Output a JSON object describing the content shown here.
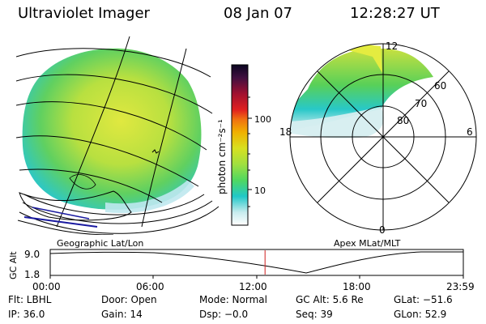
{
  "header": {
    "title": "Ultraviolet Imager",
    "date": "08 Jan 07",
    "time": "12:28:27 UT"
  },
  "left_panel": {
    "label": "Geographic Lat/Lon"
  },
  "right_panel": {
    "label": "Apex MLat/MLT",
    "mlt_labels": {
      "top": "12",
      "bottom": "0",
      "left": "18",
      "right": "6"
    },
    "lat_labels": [
      "60",
      "70",
      "80"
    ]
  },
  "colorbar": {
    "unit_label": "photon cm⁻²s⁻¹",
    "ticks": [
      "100",
      "10"
    ],
    "colors": [
      "#1a0a2e",
      "#5a1040",
      "#9a1030",
      "#d01818",
      "#f07010",
      "#f0b000",
      "#d8e020",
      "#a0e040",
      "#50d860",
      "#20c8c8",
      "#c0e8ec",
      "#ffffff"
    ]
  },
  "altitude_plot": {
    "y_label": "GC Alt",
    "y_ticks": [
      "9.0",
      "1.8"
    ],
    "x_ticks": [
      "00:00",
      "06:00",
      "12:00",
      "18:00",
      "23:59"
    ],
    "current_time_marker_fraction": 0.52
  },
  "status": {
    "row1": {
      "flt": "Flt: LBHL",
      "door": "Door: Open",
      "mode": "Mode: Normal",
      "gcalt": "GC Alt: 5.6 Re",
      "glat": "GLat: −51.6"
    },
    "row2": {
      "ip": "IP: 36.0",
      "gain": "Gain: 14",
      "dsp": "Dsp:   −0.0",
      "seq": "Seq: 39",
      "glon": "GLon:  52.9"
    }
  }
}
